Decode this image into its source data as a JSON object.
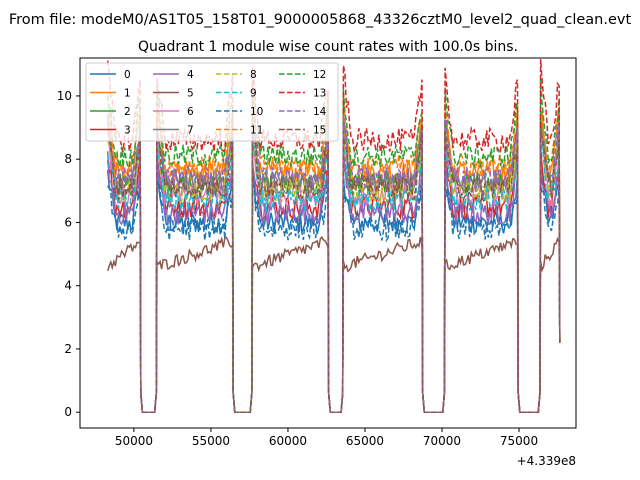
{
  "header": {
    "file_title": "From file: modeM0/AS1T05_158T01_9000005868_43326cztM0_level2_quad_clean.evt",
    "subtitle": "Quadrant 1 module wise count rates with 100.0s bins.",
    "offset_label": "+4.339e8"
  },
  "chart_data": {
    "type": "line",
    "title": "Quadrant 1 module wise count rates with 100.0s bins.",
    "xlabel": "",
    "ylabel": "",
    "x_offset": 433900000,
    "xlim": [
      46500,
      78700
    ],
    "ylim": [
      -0.5,
      11.2
    ],
    "x_ticks": [
      50000,
      55000,
      60000,
      65000,
      70000,
      75000
    ],
    "y_ticks": [
      0,
      2,
      4,
      6,
      8,
      10
    ],
    "legend_position": "top-left",
    "grid": false,
    "gaps": [
      [
        50400,
        51500
      ],
      [
        56400,
        57700
      ],
      [
        62600,
        63600
      ],
      [
        68700,
        70200
      ],
      [
        74900,
        76400
      ]
    ],
    "segments": [
      [
        48300,
        50400
      ],
      [
        51500,
        56400
      ],
      [
        57700,
        62600
      ],
      [
        63600,
        68700
      ],
      [
        70200,
        74900
      ],
      [
        76400,
        77600
      ]
    ],
    "series": [
      {
        "name": "0",
        "color": "#1f77b4",
        "dash": false,
        "level": 6.0
      },
      {
        "name": "1",
        "color": "#ff7f0e",
        "dash": false,
        "level": 7.6
      },
      {
        "name": "2",
        "color": "#2ca02c",
        "dash": false,
        "level": 7.2
      },
      {
        "name": "3",
        "color": "#d62728",
        "dash": false,
        "level": 6.5
      },
      {
        "name": "4",
        "color": "#9467bd",
        "dash": false,
        "level": 6.3
      },
      {
        "name": "5",
        "color": "#8c564b",
        "dash": false,
        "level": 4.6
      },
      {
        "name": "6",
        "color": "#e377c2",
        "dash": false,
        "level": 6.9
      },
      {
        "name": "7",
        "color": "#7f7f7f",
        "dash": false,
        "level": 7.3
      },
      {
        "name": "8",
        "color": "#bcbd22",
        "dash": true,
        "level": 7.0
      },
      {
        "name": "9",
        "color": "#17becf",
        "dash": true,
        "level": 6.7
      },
      {
        "name": "10",
        "color": "#1f77b4",
        "dash": true,
        "level": 5.8
      },
      {
        "name": "11",
        "color": "#ff7f0e",
        "dash": true,
        "level": 7.8
      },
      {
        "name": "12",
        "color": "#2ca02c",
        "dash": true,
        "level": 8.1
      },
      {
        "name": "13",
        "color": "#d62728",
        "dash": true,
        "level": 8.6
      },
      {
        "name": "14",
        "color": "#9467bd",
        "dash": true,
        "level": 7.4
      },
      {
        "name": "15",
        "color": "#8c564b",
        "dash": true,
        "level": 7.1
      }
    ]
  }
}
